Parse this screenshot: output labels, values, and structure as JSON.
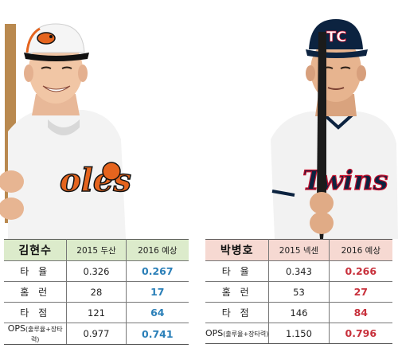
{
  "left_player": {
    "photo_name": "kim-hyun-soo-photo",
    "cap_logo": "orioles-bird",
    "jersey_text": "oles",
    "table": {
      "name": "김현수",
      "col1": "2015 두산",
      "col2": "2016 예상",
      "rows": [
        {
          "label": "타 율",
          "prev": "0.326",
          "pred": "0.267"
        },
        {
          "label": "홈 런",
          "prev": "28",
          "pred": "17"
        },
        {
          "label": "타 점",
          "prev": "121",
          "pred": "64"
        }
      ],
      "ops": {
        "label": "OPS",
        "sub": "(출루율+장타력)",
        "prev": "0.977",
        "pred": "0.741"
      }
    }
  },
  "right_player": {
    "photo_name": "park-byung-ho-photo",
    "cap_logo": "twins-TC",
    "jersey_text": "Twins",
    "table": {
      "name": "박병호",
      "col1": "2015 넥센",
      "col2": "2016 예상",
      "rows": [
        {
          "label": "타 율",
          "prev": "0.343",
          "pred": "0.266"
        },
        {
          "label": "홈 런",
          "prev": "53",
          "pred": "27"
        },
        {
          "label": "타 점",
          "prev": "146",
          "pred": "84"
        }
      ],
      "ops": {
        "label": "OPS",
        "sub": "(출루율+장타력)",
        "prev": "1.150",
        "pred": "0.796"
      }
    }
  },
  "colors": {
    "left_header_bg": "#dcebcb",
    "right_header_bg": "#f6d9d2",
    "left_pred": "#2a7fb8",
    "right_pred": "#c8313c",
    "orioles_orange": "#e5641e",
    "twins_navy": "#0c2340",
    "twins_red": "#c8102e"
  }
}
